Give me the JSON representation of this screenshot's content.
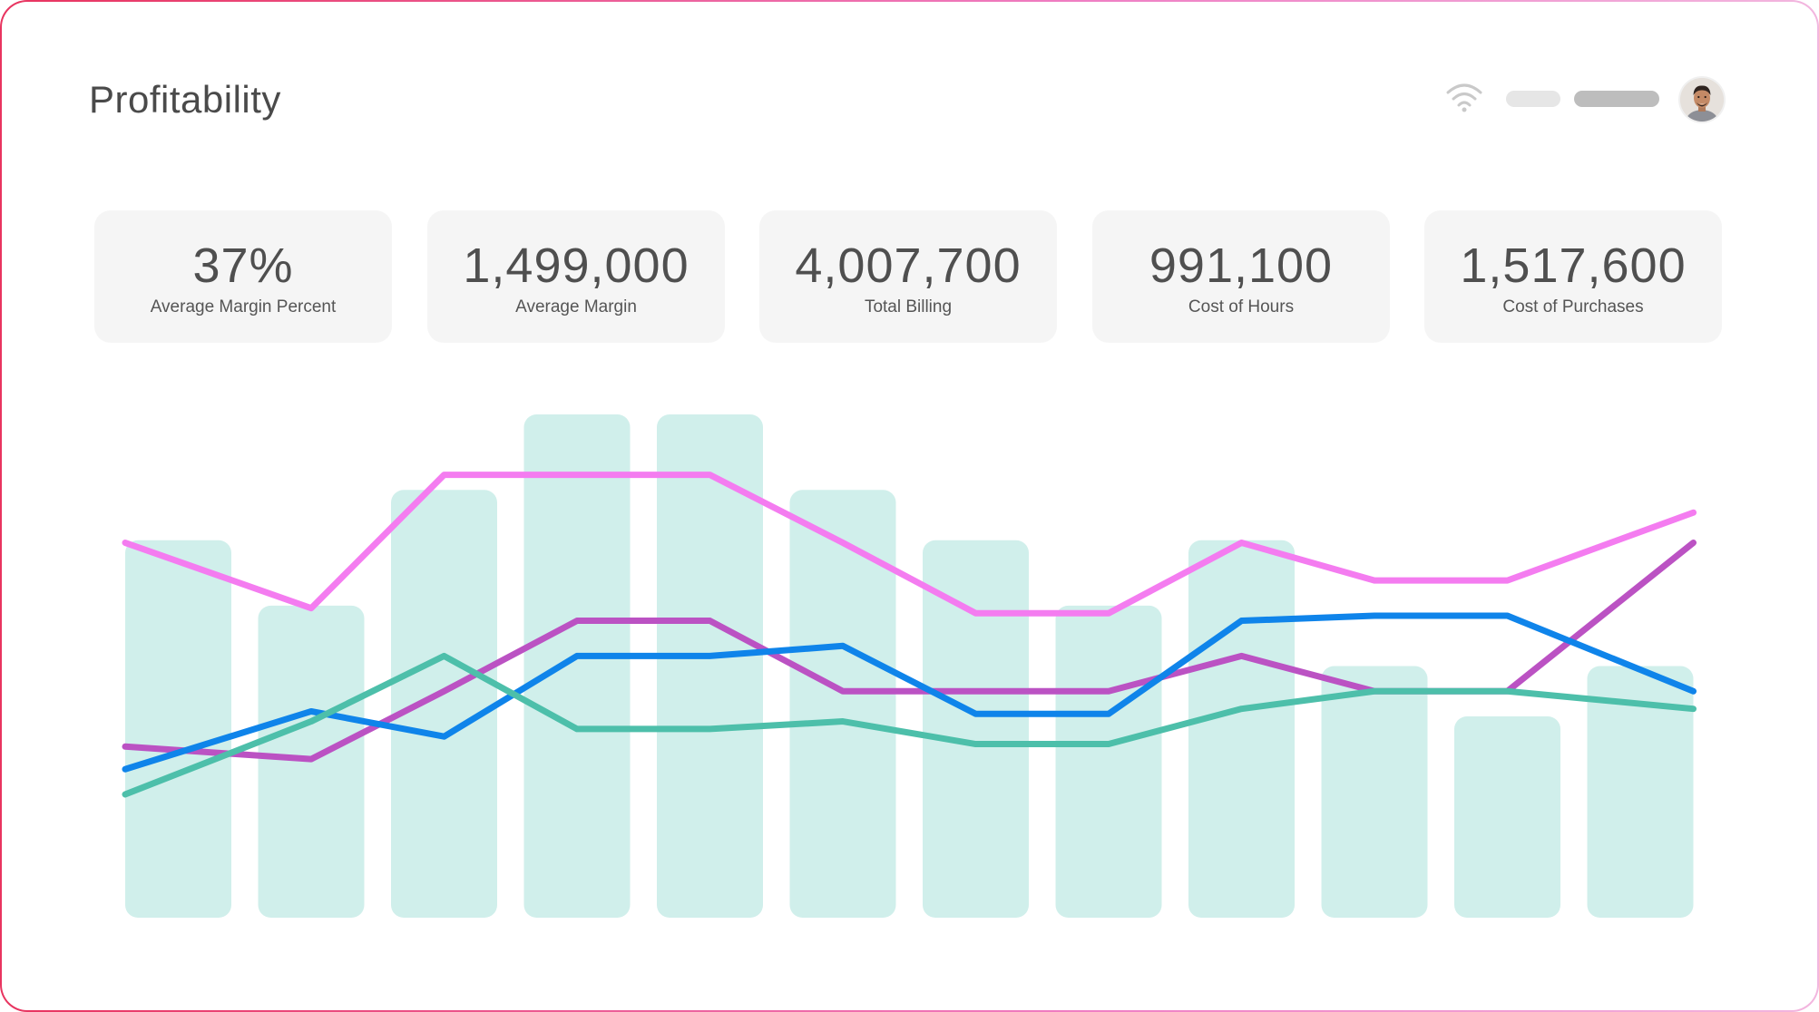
{
  "header": {
    "title": "Profitability"
  },
  "icons": {
    "status": "wifi-icon",
    "user": "avatar"
  },
  "colors": {
    "bars": "#d0efeb",
    "pink": "#f47cf0",
    "purple": "#bb52c3",
    "blue": "#0f84ea",
    "teal": "#4dbfaa"
  },
  "kpis": [
    {
      "value": "37%",
      "label": "Average Margin Percent"
    },
    {
      "value": "1,499,000",
      "label": "Average Margin"
    },
    {
      "value": "4,007,700",
      "label": "Total Billing"
    },
    {
      "value": "991,100",
      "label": "Cost of Hours"
    },
    {
      "value": "1,517,600",
      "label": "Cost of Purchases"
    }
  ],
  "chart_data": {
    "type": "bar",
    "xlabel": "",
    "ylabel": "",
    "ylim": [
      0,
      100
    ],
    "grid": false,
    "legend": "none",
    "bars": [
      75,
      62,
      85,
      100,
      100,
      85,
      75,
      62,
      75,
      50,
      40,
      50
    ],
    "series": [
      {
        "type": "line",
        "color": "#f47cf0",
        "values": [
          74.5,
          61.5,
          88,
          88,
          88,
          74.5,
          60.5,
          60.5,
          74.5,
          67,
          67,
          80.5
        ]
      },
      {
        "type": "line",
        "color": "#bb52c3",
        "values": [
          34,
          31.5,
          45,
          59,
          59,
          45,
          45,
          45,
          52,
          45,
          45,
          74.5
        ]
      },
      {
        "type": "line",
        "color": "#0f84ea",
        "values": [
          29.5,
          41,
          36,
          52,
          52,
          54,
          40.5,
          40.5,
          59,
          60,
          60,
          45
        ]
      },
      {
        "type": "line",
        "color": "#4dbfaa",
        "values": [
          24.5,
          39,
          52,
          37.5,
          37.5,
          39,
          34.5,
          34.5,
          41.5,
          45,
          45,
          41.5
        ]
      }
    ]
  }
}
